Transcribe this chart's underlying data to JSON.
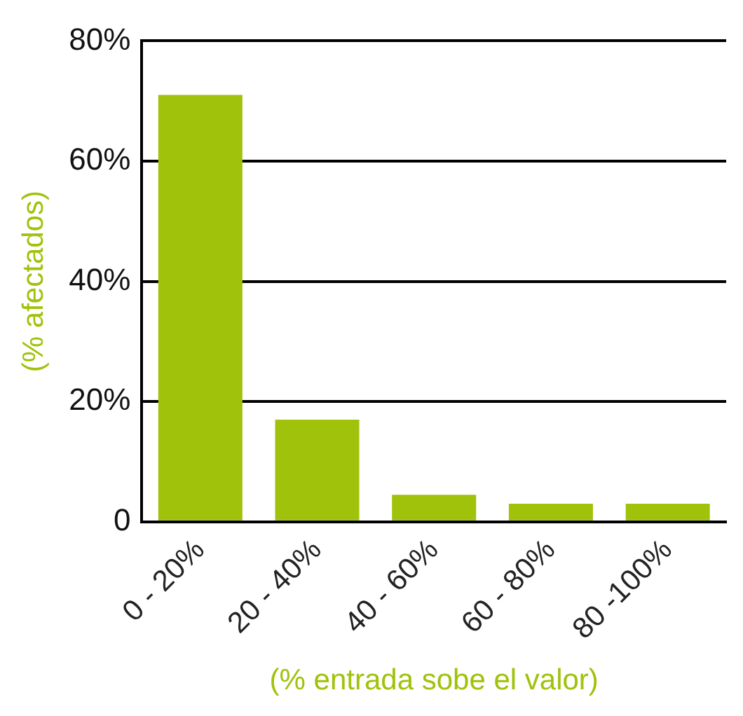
{
  "chart_data": {
    "type": "bar",
    "xlabel": "(% entrada sobe el valor)",
    "ylabel": "(% afectados)",
    "categories": [
      "0 - 20%",
      "20 - 40%",
      "40 - 60%",
      "60 - 80%",
      "80 -100%"
    ],
    "values": [
      71,
      17,
      4.5,
      3,
      3
    ],
    "color": "#a0c20a",
    "ylim": [
      0,
      80
    ],
    "yticks": [
      0,
      {
        "value": 20,
        "label": "20%"
      },
      {
        "value": 40,
        "label": "40%"
      },
      {
        "value": 60,
        "label": "60%"
      },
      {
        "value": 80,
        "label": "80%"
      }
    ],
    "grid": "y",
    "legend": false
  }
}
